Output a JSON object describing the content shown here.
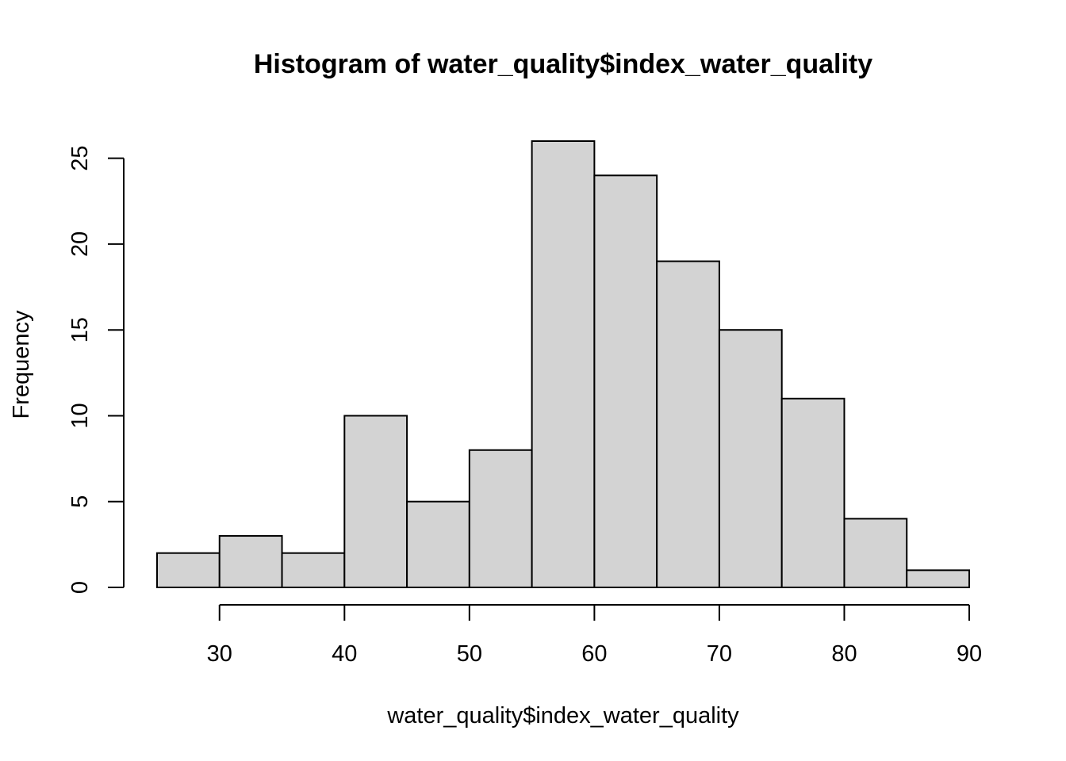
{
  "chart_data": {
    "type": "bar",
    "subtype": "histogram",
    "title": "Histogram of water_quality$index_water_quality",
    "xlabel": "water_quality$index_water_quality",
    "ylabel": "Frequency",
    "bins": [
      {
        "start": 25,
        "end": 30,
        "count": 2
      },
      {
        "start": 30,
        "end": 35,
        "count": 3
      },
      {
        "start": 35,
        "end": 40,
        "count": 2
      },
      {
        "start": 40,
        "end": 45,
        "count": 10
      },
      {
        "start": 45,
        "end": 50,
        "count": 5
      },
      {
        "start": 50,
        "end": 55,
        "count": 8
      },
      {
        "start": 55,
        "end": 60,
        "count": 26
      },
      {
        "start": 60,
        "end": 65,
        "count": 24
      },
      {
        "start": 65,
        "end": 70,
        "count": 19
      },
      {
        "start": 70,
        "end": 75,
        "count": 15
      },
      {
        "start": 75,
        "end": 80,
        "count": 11
      },
      {
        "start": 80,
        "end": 85,
        "count": 4
      },
      {
        "start": 85,
        "end": 90,
        "count": 1
      }
    ],
    "xlim": [
      25,
      90
    ],
    "ylim": [
      0,
      26
    ],
    "x_ticks": [
      30,
      40,
      50,
      60,
      70,
      80,
      90
    ],
    "y_ticks": [
      0,
      5,
      10,
      15,
      20,
      25
    ],
    "grid": false,
    "legend": "none",
    "colors": {
      "bar_fill": "#d3d3d3",
      "bar_stroke": "#000000",
      "axis": "#000000"
    }
  }
}
